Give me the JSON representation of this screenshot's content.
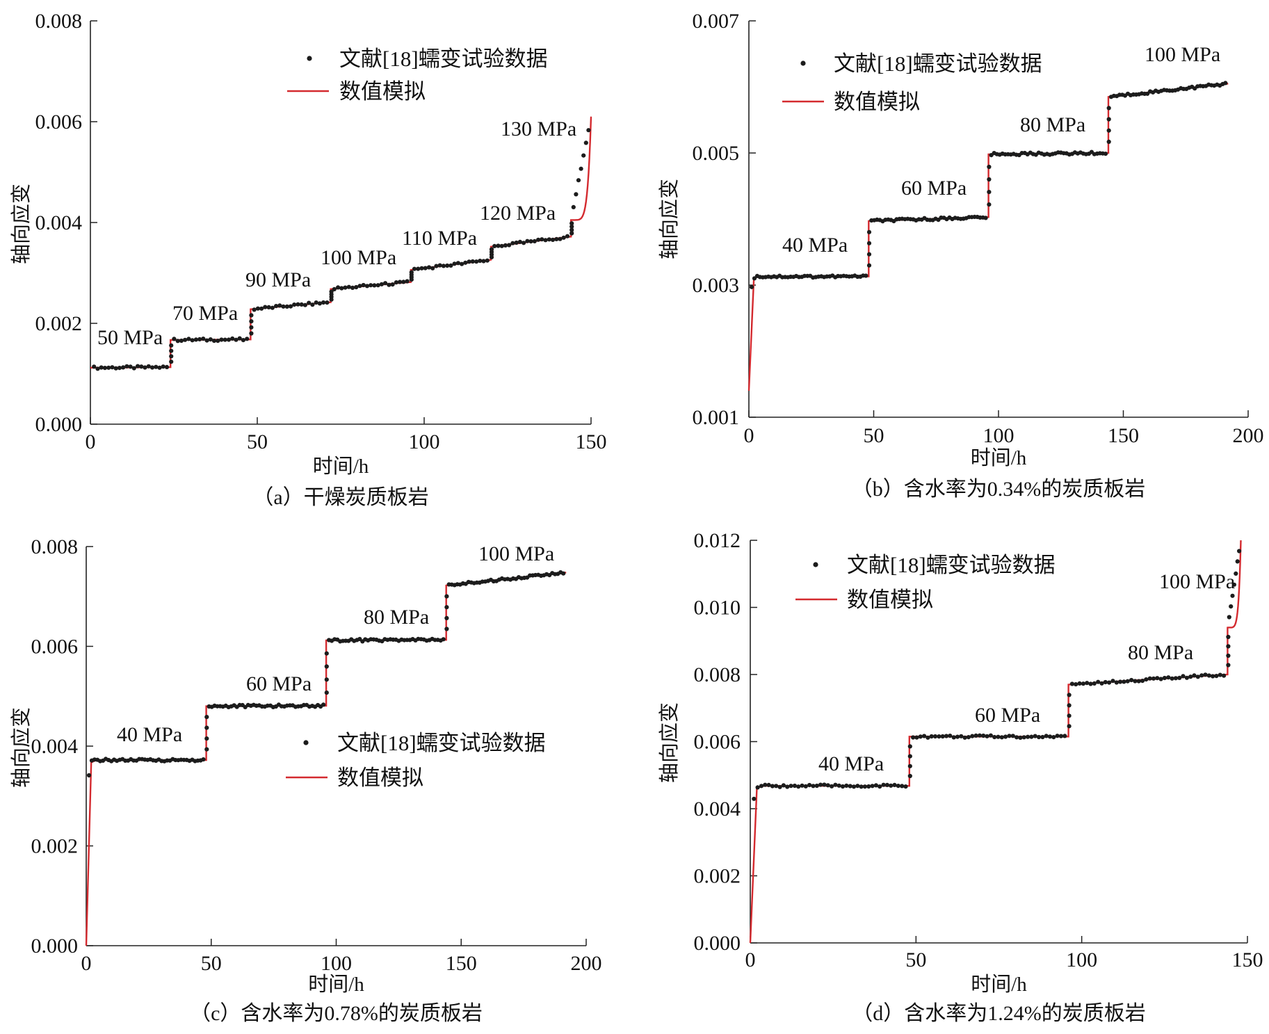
{
  "chart_data": [
    {
      "type": "line",
      "panel": "a",
      "caption": "（a）干燥炭质板岩",
      "xlabel": "时间/h",
      "ylabel": "轴向应变",
      "xlim": [
        0,
        150
      ],
      "ylim": [
        0,
        0.008
      ],
      "xticks": [
        0,
        50,
        100,
        150
      ],
      "yticks": [
        0,
        0.002,
        0.004,
        0.006,
        0.008
      ],
      "xtick_labels": [
        "0",
        "50",
        "100",
        "150"
      ],
      "ytick_labels": [
        "0.000",
        "0.002",
        "0.004",
        "0.006",
        "0.008"
      ],
      "legend": {
        "position": "top-center",
        "data_label": "文献[18]蠕变试验数据",
        "sim_label": "数值模拟"
      },
      "stages": [
        {
          "label": "50 MPa",
          "t_start": 0,
          "t_end": 24,
          "e_start": 0.00112,
          "e_end": 0.00113
        },
        {
          "label": "70 MPa",
          "t_start": 24,
          "t_end": 48,
          "e_start": 0.00167,
          "e_end": 0.00168
        },
        {
          "label": "90 MPa",
          "t_start": 48,
          "t_end": 72,
          "e_start": 0.00228,
          "e_end": 0.00242
        },
        {
          "label": "100 MPa",
          "t_start": 72,
          "t_end": 96,
          "e_start": 0.00268,
          "e_end": 0.00282
        },
        {
          "label": "110 MPa",
          "t_start": 96,
          "t_end": 120,
          "e_start": 0.00306,
          "e_end": 0.00326
        },
        {
          "label": "120 MPa",
          "t_start": 120,
          "t_end": 144,
          "e_start": 0.00352,
          "e_end": 0.00372
        },
        {
          "label": "130 MPa",
          "t_start": 144,
          "t_end": 150,
          "e_start": 0.00405,
          "e_end": 0.0061
        }
      ]
    },
    {
      "type": "line",
      "panel": "b",
      "caption": "（b）含水率为0.34%的炭质板岩",
      "xlabel": "时间/h",
      "ylabel": "轴向应变",
      "xlim": [
        0,
        200
      ],
      "ylim": [
        0.001,
        0.007
      ],
      "xticks": [
        0,
        50,
        100,
        150,
        200
      ],
      "yticks": [
        0.001,
        0.003,
        0.005,
        0.007
      ],
      "xtick_labels": [
        "0",
        "50",
        "100",
        "150",
        "200"
      ],
      "ytick_labels": [
        "0.001",
        "0.003",
        "0.005",
        "0.007"
      ],
      "legend": {
        "position": "top-left",
        "data_label": "文献[18]蠕变试验数据",
        "sim_label": "数值模拟"
      },
      "stages": [
        {
          "label": "40 MPa",
          "t_start": 0,
          "t_end": 48,
          "e_start": 0.0014,
          "e_end": 0.00313
        },
        {
          "label": "60 MPa",
          "t_start": 48,
          "t_end": 96,
          "e_start": 0.00397,
          "e_end": 0.00403
        },
        {
          "label": "80 MPa",
          "t_start": 96,
          "t_end": 144,
          "e_start": 0.00498,
          "e_end": 0.005
        },
        {
          "label": "100 MPa",
          "t_start": 144,
          "t_end": 192,
          "e_start": 0.00585,
          "e_end": 0.00605
        }
      ]
    },
    {
      "type": "line",
      "panel": "c",
      "caption": "（c）含水率为0.78%的炭质板岩",
      "xlabel": "时间/h",
      "ylabel": "轴向应变",
      "xlim": [
        0,
        200
      ],
      "ylim": [
        0,
        0.008
      ],
      "xticks": [
        0,
        50,
        100,
        150,
        200
      ],
      "yticks": [
        0,
        0.002,
        0.004,
        0.006,
        0.008
      ],
      "xtick_labels": [
        "0",
        "50",
        "100",
        "150",
        "200"
      ],
      "ytick_labels": [
        "0.000",
        "0.002",
        "0.004",
        "0.006",
        "0.008"
      ],
      "legend": {
        "position": "center-right",
        "data_label": "文献[18]蠕变试验数据",
        "sim_label": "数值模拟"
      },
      "stages": [
        {
          "label": "40 MPa",
          "t_start": 0,
          "t_end": 48,
          "e_start": 0.0,
          "e_end": 0.00372
        },
        {
          "label": "60 MPa",
          "t_start": 48,
          "t_end": 96,
          "e_start": 0.0048,
          "e_end": 0.00481
        },
        {
          "label": "80 MPa",
          "t_start": 96,
          "t_end": 144,
          "e_start": 0.00612,
          "e_end": 0.00613
        },
        {
          "label": "100 MPa",
          "t_start": 144,
          "t_end": 192,
          "e_start": 0.00722,
          "e_end": 0.00748
        }
      ]
    },
    {
      "type": "line",
      "panel": "d",
      "caption": "（d）含水率为1.24%的炭质板岩",
      "xlabel": "时间/h",
      "ylabel": "轴向应变",
      "xlim": [
        0,
        150
      ],
      "ylim": [
        0,
        0.012
      ],
      "xticks": [
        0,
        50,
        100,
        150
      ],
      "yticks": [
        0,
        0.002,
        0.004,
        0.006,
        0.008,
        0.01,
        0.012
      ],
      "xtick_labels": [
        "0",
        "50",
        "100",
        "150"
      ],
      "ytick_labels": [
        "0.000",
        "0.002",
        "0.004",
        "0.006",
        "0.008",
        "0.010",
        "0.012"
      ],
      "legend": {
        "position": "top-left",
        "data_label": "文献[18]蠕变试验数据",
        "sim_label": "数值模拟"
      },
      "stages": [
        {
          "label": "40 MPa",
          "t_start": 0,
          "t_end": 48,
          "e_start": 0.0,
          "e_end": 0.00468
        },
        {
          "label": "60 MPa",
          "t_start": 48,
          "t_end": 96,
          "e_start": 0.00615,
          "e_end": 0.00615
        },
        {
          "label": "80 MPa",
          "t_start": 96,
          "t_end": 144,
          "e_start": 0.0077,
          "e_end": 0.008
        },
        {
          "label": "100 MPa",
          "t_start": 144,
          "t_end": 148,
          "e_start": 0.0094,
          "e_end": 0.012
        }
      ]
    }
  ],
  "colors": {
    "simulation_line": "#d42a2f",
    "data_markers": "#1c1c1c",
    "axes": "#222222"
  }
}
